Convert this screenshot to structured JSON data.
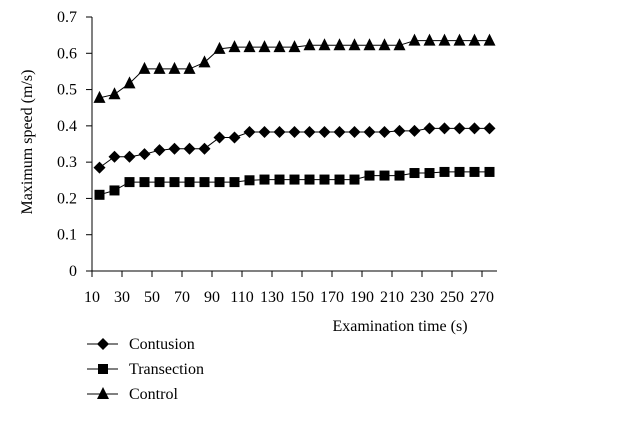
{
  "chart_data": {
    "type": "line",
    "title": "",
    "xlabel": "Examination time (s)",
    "ylabel": "Maximum speed (m/s)",
    "x_ticks": [
      10,
      30,
      50,
      70,
      90,
      110,
      130,
      150,
      170,
      190,
      210,
      230,
      250,
      270
    ],
    "y_ticks": [
      0,
      0.1,
      0.2,
      0.3,
      0.4,
      0.5,
      0.6,
      0.7
    ],
    "y_tick_labels": [
      "0",
      "0.1",
      "0.2",
      "0.3",
      "0.4",
      "0.5",
      "0.6",
      "0.7"
    ],
    "xlim": [
      10,
      280
    ],
    "ylim": [
      0,
      0.7
    ],
    "grid": false,
    "legend_position": "bottom-left",
    "x": [
      15,
      25,
      35,
      45,
      55,
      65,
      75,
      85,
      95,
      105,
      115,
      125,
      135,
      145,
      155,
      165,
      175,
      185,
      195,
      205,
      215,
      225,
      235,
      245,
      255,
      265,
      275
    ],
    "series": [
      {
        "name": "Contusion",
        "marker": "diamond",
        "color": "#000000",
        "values": [
          0.285,
          0.315,
          0.315,
          0.322,
          0.333,
          0.337,
          0.337,
          0.337,
          0.368,
          0.368,
          0.383,
          0.383,
          0.383,
          0.383,
          0.383,
          0.383,
          0.383,
          0.383,
          0.383,
          0.383,
          0.386,
          0.386,
          0.393,
          0.393,
          0.393,
          0.393,
          0.393
        ]
      },
      {
        "name": "Transection",
        "marker": "square",
        "color": "#000000",
        "values": [
          0.21,
          0.222,
          0.245,
          0.245,
          0.245,
          0.245,
          0.245,
          0.245,
          0.245,
          0.245,
          0.25,
          0.252,
          0.252,
          0.252,
          0.252,
          0.252,
          0.252,
          0.252,
          0.263,
          0.263,
          0.263,
          0.27,
          0.27,
          0.273,
          0.273,
          0.273,
          0.273
        ]
      },
      {
        "name": "Control",
        "marker": "triangle",
        "color": "#000000",
        "values": [
          0.477,
          0.487,
          0.517,
          0.557,
          0.557,
          0.557,
          0.557,
          0.575,
          0.612,
          0.617,
          0.617,
          0.617,
          0.617,
          0.617,
          0.622,
          0.622,
          0.622,
          0.622,
          0.622,
          0.622,
          0.622,
          0.635,
          0.635,
          0.635,
          0.635,
          0.635,
          0.635
        ]
      }
    ]
  }
}
